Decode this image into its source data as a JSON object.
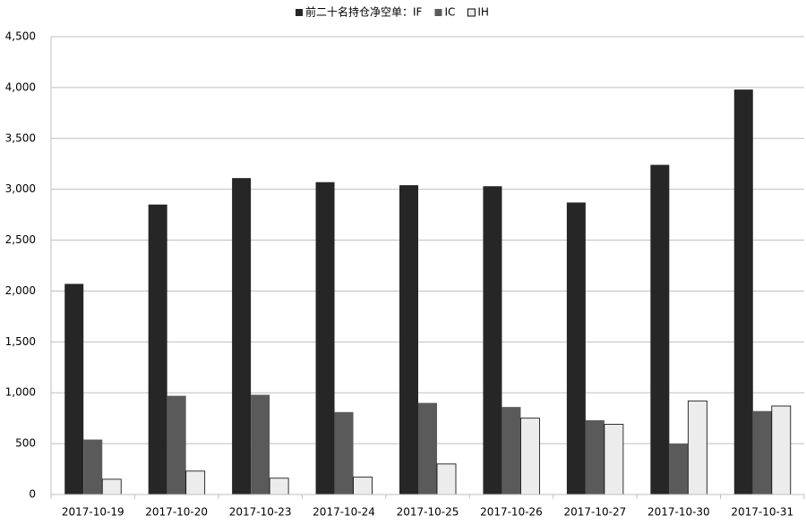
{
  "chart_data": {
    "type": "bar",
    "legend_title": "前二十名持仓净空单：",
    "categories": [
      "2017-10-19",
      "2017-10-20",
      "2017-10-23",
      "2017-10-24",
      "2017-10-25",
      "2017-10-26",
      "2017-10-27",
      "2017-10-30",
      "2017-10-31"
    ],
    "series": [
      {
        "name": "IF",
        "color": "#262626",
        "values": [
          2070,
          2850,
          3110,
          3070,
          3040,
          3030,
          2870,
          3240,
          3980
        ]
      },
      {
        "name": "IC",
        "color": "#5a5a5a",
        "values": [
          540,
          970,
          980,
          810,
          900,
          860,
          730,
          500,
          820
        ]
      },
      {
        "name": "IH",
        "color": "#ececec",
        "values": [
          150,
          230,
          160,
          170,
          300,
          750,
          690,
          920,
          870
        ]
      }
    ],
    "ylim": [
      0,
      4500
    ],
    "yticks": [
      0,
      500,
      {
        "value": 1000,
        "label": "1,000"
      },
      {
        "value": 1500,
        "label": "1,500"
      },
      {
        "value": 2000,
        "label": "2,000"
      },
      {
        "value": 2500,
        "label": "2,500"
      },
      {
        "value": 3000,
        "label": "3,000"
      },
      {
        "value": 3500,
        "label": "3,500"
      },
      {
        "value": 4000,
        "label": "4,000"
      },
      {
        "value": 4500,
        "label": "4,500"
      }
    ],
    "grid": true,
    "legend": "top"
  }
}
